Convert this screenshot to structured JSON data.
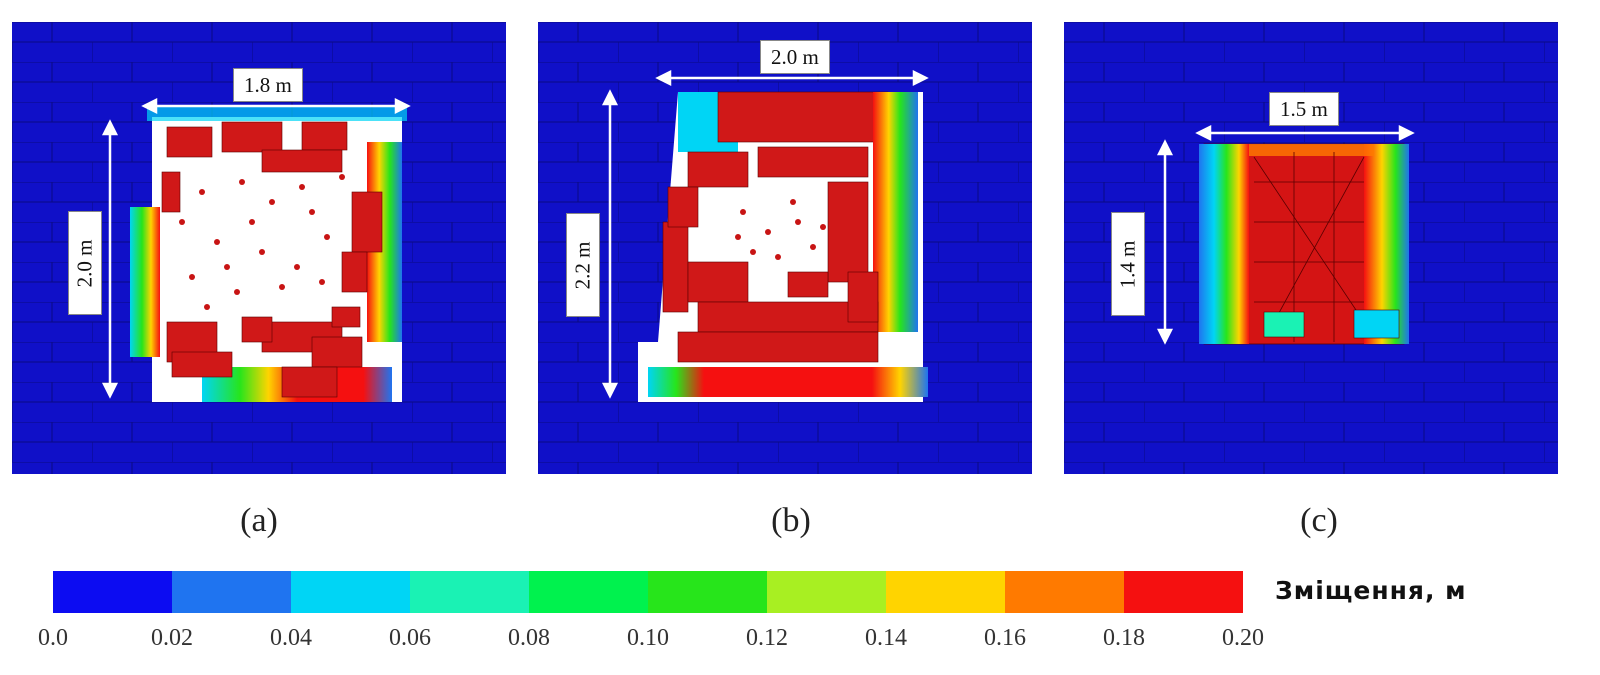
{
  "panels": [
    {
      "id": "a",
      "label": "(a)",
      "width_label": "1.8 m",
      "height_label": "2.0 m"
    },
    {
      "id": "b",
      "label": "(b)",
      "width_label": "2.0 m",
      "height_label": "2.2 m"
    },
    {
      "id": "c",
      "label": "(c)",
      "width_label": "1.5 m",
      "height_label": "1.4 m"
    }
  ],
  "colorbar": {
    "title": "Зміщення, м",
    "ticks": [
      "0.0",
      "0.02",
      "0.04",
      "0.06",
      "0.08",
      "0.10",
      "0.12",
      "0.14",
      "0.16",
      "0.18",
      "0.20"
    ],
    "colors": [
      "#0c0cf2",
      "#1f74f0",
      "#00d5f5",
      "#1af2b4",
      "#00f24e",
      "#27e51b",
      "#a8ef22",
      "#ffd400",
      "#ff7a00",
      "#f51010"
    ]
  },
  "colors": {
    "background": "#1010c8",
    "damage": "#d01818",
    "opening": "#ffffff"
  }
}
